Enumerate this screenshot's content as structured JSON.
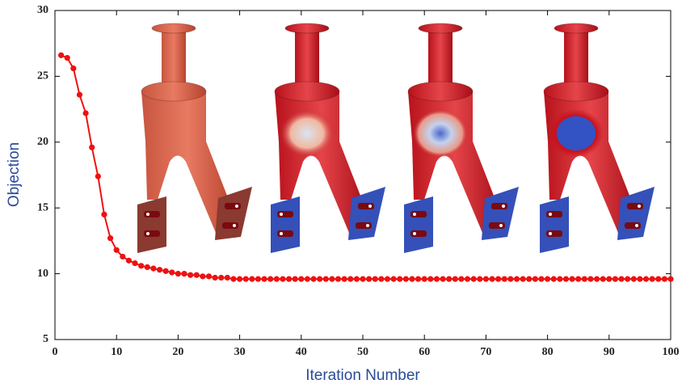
{
  "chart_data": {
    "type": "line",
    "x": [
      1,
      2,
      3,
      4,
      5,
      6,
      7,
      8,
      9,
      10,
      11,
      12,
      13,
      14,
      15,
      16,
      17,
      18,
      19,
      20,
      21,
      22,
      23,
      24,
      25,
      26,
      27,
      28,
      29,
      30,
      31,
      32,
      33,
      34,
      35,
      36,
      37,
      38,
      39,
      40,
      41,
      42,
      43,
      44,
      45,
      46,
      47,
      48,
      49,
      50,
      51,
      52,
      53,
      54,
      55,
      56,
      57,
      58,
      59,
      60,
      61,
      62,
      63,
      64,
      65,
      66,
      67,
      68,
      69,
      70,
      71,
      72,
      73,
      74,
      75,
      76,
      77,
      78,
      79,
      80,
      81,
      82,
      83,
      84,
      85,
      86,
      87,
      88,
      89,
      90,
      91,
      92,
      93,
      94,
      95,
      96,
      97,
      98,
      99,
      100
    ],
    "series": [
      {
        "color": "#ee1111",
        "values": [
          26.6,
          26.4,
          25.6,
          23.6,
          22.2,
          19.6,
          17.4,
          14.5,
          12.7,
          11.8,
          11.3,
          11.0,
          10.8,
          10.6,
          10.5,
          10.4,
          10.3,
          10.2,
          10.1,
          10.0,
          10.0,
          9.9,
          9.9,
          9.8,
          9.8,
          9.7,
          9.7,
          9.7,
          9.6,
          9.6,
          9.6,
          9.6,
          9.6,
          9.6,
          9.6,
          9.6,
          9.6,
          9.6,
          9.6,
          9.6,
          9.6,
          9.6,
          9.6,
          9.6,
          9.6,
          9.6,
          9.6,
          9.6,
          9.6,
          9.6,
          9.6,
          9.6,
          9.6,
          9.6,
          9.6,
          9.6,
          9.6,
          9.6,
          9.6,
          9.6,
          9.6,
          9.6,
          9.6,
          9.6,
          9.6,
          9.6,
          9.6,
          9.6,
          9.6,
          9.6,
          9.6,
          9.6,
          9.6,
          9.6,
          9.6,
          9.6,
          9.6,
          9.6,
          9.6,
          9.6,
          9.6,
          9.6,
          9.6,
          9.6,
          9.6,
          9.6,
          9.6,
          9.6,
          9.6,
          9.6,
          9.6,
          9.6,
          9.6,
          9.6,
          9.6,
          9.6,
          9.6,
          9.6,
          9.6,
          9.6
        ]
      }
    ],
    "x_label": "Iteration Number",
    "y_label": "Objection",
    "xlim": [
      0,
      100
    ],
    "xticks": [
      0,
      10,
      20,
      30,
      40,
      50,
      60,
      70,
      80,
      90,
      100
    ],
    "ylim": [
      5,
      30
    ],
    "yticks": [
      5,
      10,
      15,
      20,
      25,
      30
    ]
  }
}
